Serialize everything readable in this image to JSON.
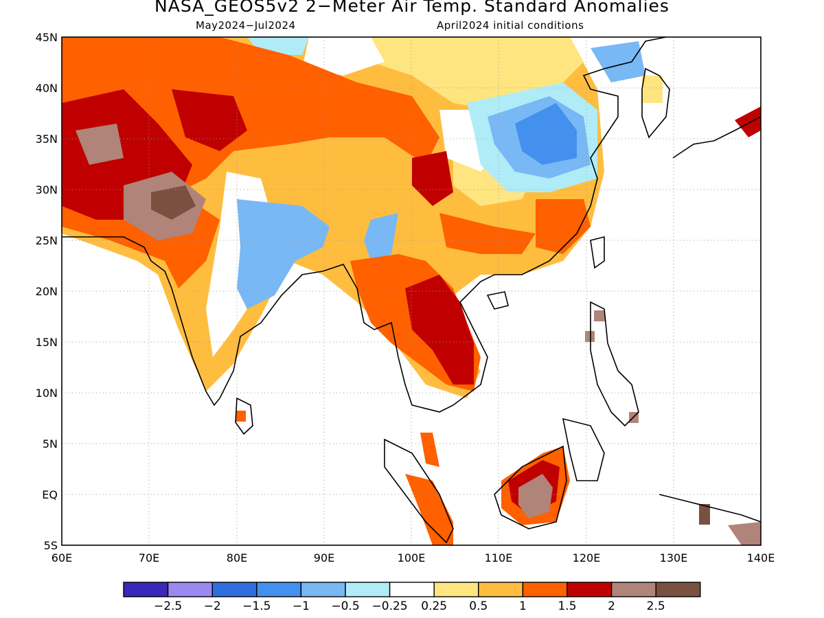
{
  "title": "NASA_GEOS5v2 2−Meter Air Temp. Standard Anomalies",
  "period": "May2024−Jul2024",
  "initial_conditions": "April2024 initial conditions",
  "lat_labels": [
    "45N",
    "40N",
    "35N",
    "30N",
    "25N",
    "20N",
    "15N",
    "10N",
    "5N",
    "EQ",
    "5S"
  ],
  "lon_labels": [
    "60E",
    "70E",
    "80E",
    "90E",
    "100E",
    "110E",
    "120E",
    "130E",
    "140E"
  ],
  "colorbar": {
    "colors": [
      "#3a28b8",
      "#9b88f0",
      "#2e6ee0",
      "#4490ee",
      "#78b8f4",
      "#b0ecf8",
      "#ffffff",
      "#ffe580",
      "#ffbd40",
      "#ff6000",
      "#c00000",
      "#b08478",
      "#7a5040"
    ],
    "labels": [
      "−2.5",
      "−2",
      "−1.5",
      "−1",
      "−0.5",
      "−0.25",
      "0.25",
      "0.5",
      "1",
      "1.5",
      "2",
      "2.5"
    ]
  },
  "colors": {
    "warm_strong": "#c00000",
    "warm": "#ff6000",
    "mild": "#ffbd40",
    "slight": "#ffe580",
    "cool": "#78b8f4",
    "cold": "#4490ee",
    "extreme_warm": "#b08478",
    "extreme_warm2": "#7a5040"
  }
}
